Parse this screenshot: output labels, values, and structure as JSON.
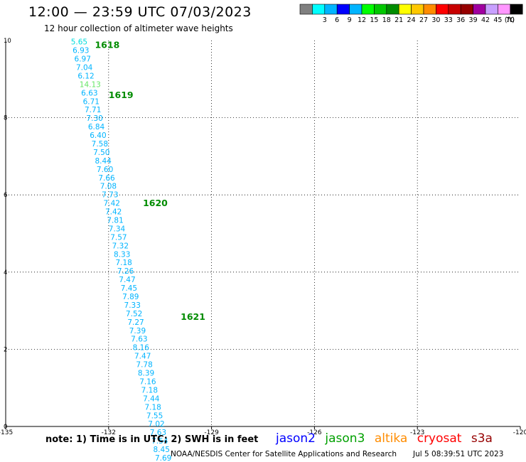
{
  "header": {
    "title": "12:00 — 23:59 UTC 07/03/2023",
    "subtitle": "12 hour collection of altimeter wave heights"
  },
  "legend": {
    "unit": "(ft)",
    "bins": [
      {
        "label": "",
        "color": "#808080"
      },
      {
        "label": "3",
        "color": "#00ffff"
      },
      {
        "label": "6",
        "color": "#00b4ff"
      },
      {
        "label": "9",
        "color": "#0000ff"
      },
      {
        "label": "12",
        "color": "#00b4ff"
      },
      {
        "label": "15",
        "color": "#00ff00"
      },
      {
        "label": "18",
        "color": "#00c800"
      },
      {
        "label": "21",
        "color": "#008c00"
      },
      {
        "label": "24",
        "color": "#ffff00"
      },
      {
        "label": "27",
        "color": "#ffc800"
      },
      {
        "label": "30",
        "color": "#ff8c00"
      },
      {
        "label": "33",
        "color": "#ff0000"
      },
      {
        "label": "36",
        "color": "#c80000"
      },
      {
        "label": "39",
        "color": "#960000"
      },
      {
        "label": "42",
        "color": "#a000a0"
      },
      {
        "label": "45",
        "color": "#c8a0ff"
      },
      {
        "label": "70",
        "color": "#ff96ff"
      },
      {
        "label": "",
        "color": "#000000"
      }
    ]
  },
  "footer": {
    "note": "note: 1) Time is in UTC; 2) SWH is in feet",
    "satellites": [
      {
        "name": "jason2",
        "color": "#0000ff"
      },
      {
        "name": "jason3",
        "color": "#00a000"
      },
      {
        "name": "altika",
        "color": "#ff8c00"
      },
      {
        "name": "cryosat",
        "color": "#ff0000"
      },
      {
        "name": "s3a",
        "color": "#960000"
      }
    ],
    "credit": "NOAA/NESDIS Center for Satellite Applications and Research",
    "timestamp": "Jul  5 08:39:51 UTC 2023"
  },
  "chart_data": {
    "type": "scatter",
    "title": "12 hour collection of altimeter wave heights",
    "xlim": [
      -135,
      -120
    ],
    "ylim": [
      0,
      10
    ],
    "x_ticks": [
      "-135",
      "-132",
      "-129",
      "-126",
      "-123",
      "-120"
    ],
    "y_ticks": [
      "0",
      "2",
      "4",
      "6",
      "8",
      "10"
    ],
    "grid": true,
    "time_labels": [
      {
        "text": "1618",
        "x": -132.4,
        "y": 9.9,
        "color": "#008c00"
      },
      {
        "text": "1619",
        "x": -132.0,
        "y": 8.6,
        "color": "#008c00"
      },
      {
        "text": "1620",
        "x": -131.0,
        "y": 5.8,
        "color": "#008c00"
      },
      {
        "text": "1621",
        "x": -129.9,
        "y": 2.85,
        "color": "#008c00"
      }
    ],
    "points": [
      {
        "lon": -133.1,
        "lat": 9.97,
        "swh": "5.65",
        "color": "#00dcdc"
      },
      {
        "lon": -133.05,
        "lat": 9.75,
        "swh": "6.93",
        "color": "#00b4ff"
      },
      {
        "lon": -133.0,
        "lat": 9.53,
        "swh": "6.97",
        "color": "#00b4ff"
      },
      {
        "lon": -132.95,
        "lat": 9.31,
        "swh": "7.04",
        "color": "#00b4ff"
      },
      {
        "lon": -132.9,
        "lat": 9.09,
        "swh": "6.12",
        "color": "#00b4ff"
      },
      {
        "lon": -132.85,
        "lat": 8.87,
        "swh": "14.13",
        "color": "#64e664"
      },
      {
        "lon": -132.8,
        "lat": 8.65,
        "swh": "6.63",
        "color": "#00b4ff"
      },
      {
        "lon": -132.75,
        "lat": 8.43,
        "swh": "6.71",
        "color": "#00b4ff"
      },
      {
        "lon": -132.7,
        "lat": 8.21,
        "swh": "7.71",
        "color": "#00b4ff"
      },
      {
        "lon": -132.65,
        "lat": 7.99,
        "swh": "7.30",
        "color": "#00b4ff"
      },
      {
        "lon": -132.6,
        "lat": 7.77,
        "swh": "6.84",
        "color": "#00b4ff"
      },
      {
        "lon": -132.55,
        "lat": 7.55,
        "swh": "6.40",
        "color": "#00b4ff"
      },
      {
        "lon": -132.5,
        "lat": 7.33,
        "swh": "7.58",
        "color": "#00b4ff"
      },
      {
        "lon": -132.45,
        "lat": 7.11,
        "swh": "7.50",
        "color": "#00b4ff"
      },
      {
        "lon": -132.4,
        "lat": 6.89,
        "swh": "8.44",
        "color": "#00b4ff"
      },
      {
        "lon": -132.35,
        "lat": 6.67,
        "swh": "7.60",
        "color": "#00b4ff"
      },
      {
        "lon": -132.3,
        "lat": 6.45,
        "swh": "7.66",
        "color": "#00b4ff"
      },
      {
        "lon": -132.25,
        "lat": 6.23,
        "swh": "7.08",
        "color": "#00b4ff"
      },
      {
        "lon": -132.2,
        "lat": 6.01,
        "swh": "7.73",
        "color": "#00b4ff"
      },
      {
        "lon": -132.15,
        "lat": 5.79,
        "swh": "7.42",
        "color": "#00b4ff"
      },
      {
        "lon": -132.1,
        "lat": 5.57,
        "swh": "7.42",
        "color": "#00b4ff"
      },
      {
        "lon": -132.05,
        "lat": 5.35,
        "swh": "7.81",
        "color": "#00b4ff"
      },
      {
        "lon": -132.0,
        "lat": 5.13,
        "swh": "7.34",
        "color": "#00b4ff"
      },
      {
        "lon": -131.95,
        "lat": 4.91,
        "swh": "7.57",
        "color": "#00b4ff"
      },
      {
        "lon": -131.9,
        "lat": 4.69,
        "swh": "7.32",
        "color": "#00b4ff"
      },
      {
        "lon": -131.85,
        "lat": 4.47,
        "swh": "8.33",
        "color": "#00b4ff"
      },
      {
        "lon": -131.8,
        "lat": 4.25,
        "swh": "7.18",
        "color": "#00b4ff"
      },
      {
        "lon": -131.75,
        "lat": 4.03,
        "swh": "7.26",
        "color": "#00b4ff"
      },
      {
        "lon": -131.7,
        "lat": 3.81,
        "swh": "7.47",
        "color": "#00b4ff"
      },
      {
        "lon": -131.65,
        "lat": 3.59,
        "swh": "7.45",
        "color": "#00b4ff"
      },
      {
        "lon": -131.6,
        "lat": 3.37,
        "swh": "7.89",
        "color": "#00b4ff"
      },
      {
        "lon": -131.55,
        "lat": 3.15,
        "swh": "7.33",
        "color": "#00b4ff"
      },
      {
        "lon": -131.5,
        "lat": 2.93,
        "swh": "7.52",
        "color": "#00b4ff"
      },
      {
        "lon": -131.45,
        "lat": 2.71,
        "swh": "7.27",
        "color": "#00b4ff"
      },
      {
        "lon": -131.4,
        "lat": 2.49,
        "swh": "7.39",
        "color": "#00b4ff"
      },
      {
        "lon": -131.35,
        "lat": 2.27,
        "swh": "7.63",
        "color": "#00b4ff"
      },
      {
        "lon": -131.3,
        "lat": 2.05,
        "swh": "8.16",
        "color": "#00b4ff"
      },
      {
        "lon": -131.25,
        "lat": 1.83,
        "swh": "7.47",
        "color": "#00b4ff"
      },
      {
        "lon": -131.2,
        "lat": 1.61,
        "swh": "7.78",
        "color": "#00b4ff"
      },
      {
        "lon": -131.15,
        "lat": 1.39,
        "swh": "8.39",
        "color": "#00b4ff"
      },
      {
        "lon": -131.1,
        "lat": 1.17,
        "swh": "7.16",
        "color": "#00b4ff"
      },
      {
        "lon": -131.05,
        "lat": 0.95,
        "swh": "7.18",
        "color": "#00b4ff"
      },
      {
        "lon": -131.0,
        "lat": 0.73,
        "swh": "7.44",
        "color": "#00b4ff"
      },
      {
        "lon": -130.95,
        "lat": 0.51,
        "swh": "7.18",
        "color": "#00b4ff"
      },
      {
        "lon": -130.9,
        "lat": 0.29,
        "swh": "7.55",
        "color": "#00b4ff"
      },
      {
        "lon": -130.85,
        "lat": 0.07,
        "swh": "7.02",
        "color": "#00b4ff"
      },
      {
        "lon": -130.8,
        "lat": -0.15,
        "swh": "7.63",
        "color": "#00b4ff"
      },
      {
        "lon": -130.75,
        "lat": -0.37,
        "swh": "7.54",
        "color": "#00b4ff"
      },
      {
        "lon": -130.7,
        "lat": -0.59,
        "swh": "8.45",
        "color": "#00b4ff"
      },
      {
        "lon": -130.65,
        "lat": -0.81,
        "swh": "7.69",
        "color": "#00b4ff"
      }
    ]
  }
}
